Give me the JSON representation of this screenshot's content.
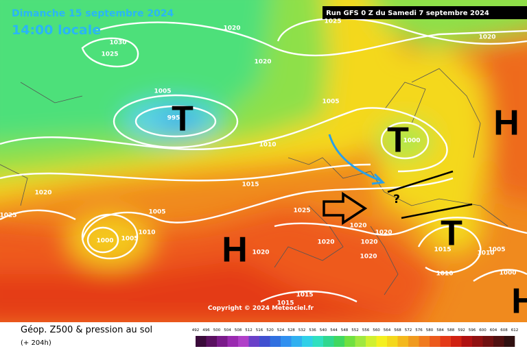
{
  "header": {
    "date": "Dimanche 15 septembre 2024",
    "time": "14:00 locale",
    "run": "Run GFS 0 Z du Samedi 7 septembre 2024"
  },
  "copyright": "Copyright © 2024 Meteociel.fr",
  "legend": {
    "title": "Géop. Z500 & pression au sol",
    "lead": "(+ 204h)",
    "scale": [
      "492",
      "496",
      "500",
      "504",
      "508",
      "512",
      "516",
      "520",
      "524",
      "528",
      "532",
      "536",
      "540",
      "544",
      "548",
      "552",
      "556",
      "560",
      "564",
      "568",
      "572",
      "576",
      "580",
      "584",
      "588",
      "592",
      "596",
      "600",
      "604",
      "608",
      "612"
    ]
  },
  "centers": [
    "T",
    "T",
    "T",
    "H",
    "H",
    "H"
  ],
  "annotation": "?",
  "isobar_labels": [
    "1020",
    "1025",
    "1020",
    "1030",
    "1025",
    "1020",
    "1005",
    "1005",
    "995",
    "1010",
    "1000",
    "1015",
    "1020",
    "1025",
    "1005",
    "1025",
    "1010",
    "1005",
    "1000",
    "1020",
    "1020",
    "1020",
    "1020",
    "1020",
    "1020",
    "1015",
    "1010",
    "1005",
    "1010",
    "1000",
    "1015",
    "1015"
  ]
}
